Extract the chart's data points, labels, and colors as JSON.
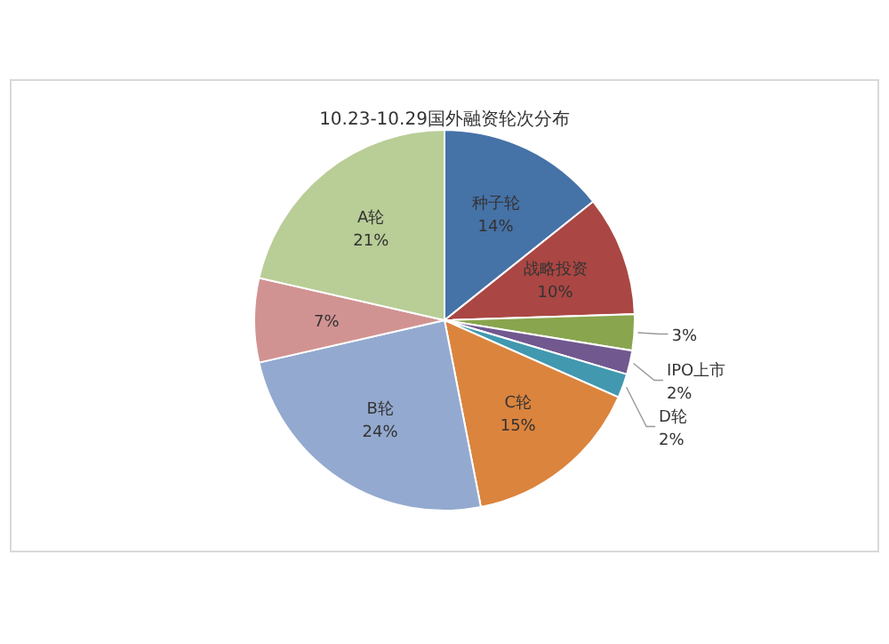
{
  "chart_data": {
    "type": "pie",
    "title": "10.23-10.29国外融资轮次分布",
    "categories": [
      "种子轮",
      "战略投资",
      null,
      "IPO上市",
      "D轮",
      "C轮",
      "B轮",
      null,
      "A轮"
    ],
    "values": [
      14,
      10,
      3,
      2,
      2,
      15,
      24,
      7,
      21
    ],
    "value_labels": [
      "14%",
      "10%",
      "3%",
      "2%",
      "2%",
      "15%",
      "24%",
      "7%",
      "21%"
    ],
    "colors": [
      "#4572a7",
      "#aa4643",
      "#89a54e",
      "#71588f",
      "#4198af",
      "#db843d",
      "#93a9cf",
      "#d19392",
      "#b9cd96"
    ]
  }
}
